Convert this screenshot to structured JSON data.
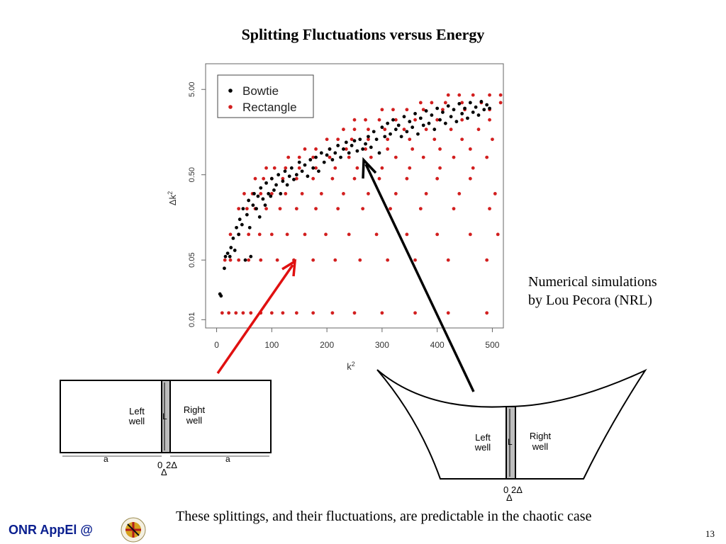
{
  "slide": {
    "title": "Splitting Fluctuations versus Energy",
    "note_lines": [
      "Numerical simulations",
      "by Lou Pecora (NRL)"
    ],
    "caption": "These splittings, and their fluctuations, are predictable in the chaotic case",
    "page_number": "13",
    "footer_label": "ONR AppEl @",
    "colors": {
      "bowtie": "#000000",
      "rectangle": "#d21f1f",
      "arrow_red": "#e01010",
      "arrow_black": "#000000",
      "footer": "#0a1f8f"
    }
  },
  "chart_data": {
    "type": "scatter",
    "xlabel": "k",
    "xlabel_sup": "2",
    "ylabel": "Δk",
    "ylabel_sup": "2",
    "x_ticks": [
      "0",
      "100",
      "200",
      "300",
      "400",
      "500"
    ],
    "y_ticks": [
      "0.01",
      "0.05",
      "0.50",
      "5.00"
    ],
    "xlim": [
      -20,
      520
    ],
    "ylim": [
      0.008,
      10
    ],
    "yscale": "log",
    "legend_position": "top-left",
    "series": [
      {
        "name": "Bowtie",
        "points": [
          [
            6,
            0.02
          ],
          [
            8,
            0.019
          ],
          [
            14,
            0.04
          ],
          [
            16,
            0.055
          ],
          [
            20,
            0.06
          ],
          [
            24,
            0.055
          ],
          [
            26,
            0.07
          ],
          [
            30,
            0.09
          ],
          [
            33,
            0.065
          ],
          [
            36,
            0.12
          ],
          [
            40,
            0.1
          ],
          [
            42,
            0.15
          ],
          [
            46,
            0.13
          ],
          [
            48,
            0.2
          ],
          [
            52,
            0.05
          ],
          [
            55,
            0.17
          ],
          [
            58,
            0.25
          ],
          [
            60,
            0.12
          ],
          [
            62,
            0.055
          ],
          [
            66,
            0.22
          ],
          [
            68,
            0.3
          ],
          [
            72,
            0.2
          ],
          [
            75,
            0.28
          ],
          [
            78,
            0.16
          ],
          [
            80,
            0.35
          ],
          [
            84,
            0.26
          ],
          [
            88,
            0.22
          ],
          [
            90,
            0.4
          ],
          [
            94,
            0.3
          ],
          [
            98,
            0.28
          ],
          [
            100,
            0.45
          ],
          [
            104,
            0.33
          ],
          [
            108,
            0.38
          ],
          [
            112,
            0.5
          ],
          [
            116,
            0.3
          ],
          [
            120,
            0.42
          ],
          [
            124,
            0.55
          ],
          [
            128,
            0.38
          ],
          [
            132,
            0.48
          ],
          [
            136,
            0.6
          ],
          [
            140,
            0.44
          ],
          [
            145,
            0.5
          ],
          [
            150,
            0.7
          ],
          [
            155,
            0.55
          ],
          [
            160,
            0.65
          ],
          [
            165,
            0.48
          ],
          [
            170,
            0.75
          ],
          [
            175,
            0.6
          ],
          [
            180,
            0.8
          ],
          [
            185,
            0.55
          ],
          [
            190,
            0.9
          ],
          [
            195,
            0.7
          ],
          [
            200,
            0.85
          ],
          [
            205,
            1.0
          ],
          [
            210,
            0.75
          ],
          [
            215,
            0.9
          ],
          [
            220,
            1.1
          ],
          [
            225,
            0.8
          ],
          [
            230,
            1.0
          ],
          [
            235,
            1.2
          ],
          [
            240,
            0.9
          ],
          [
            245,
            1.1
          ],
          [
            250,
            1.25
          ],
          [
            255,
            0.95
          ],
          [
            260,
            1.3
          ],
          [
            265,
            1.0
          ],
          [
            270,
            1.15
          ],
          [
            275,
            1.4
          ],
          [
            280,
            1.05
          ],
          [
            285,
            1.6
          ],
          [
            290,
            1.3
          ],
          [
            295,
            0.9
          ],
          [
            300,
            1.8
          ],
          [
            305,
            1.4
          ],
          [
            310,
            2.0
          ],
          [
            315,
            1.5
          ],
          [
            320,
            2.2
          ],
          [
            325,
            1.7
          ],
          [
            330,
            1.9
          ],
          [
            335,
            1.4
          ],
          [
            340,
            2.4
          ],
          [
            345,
            1.6
          ],
          [
            350,
            2.1
          ],
          [
            355,
            1.8
          ],
          [
            360,
            2.6
          ],
          [
            365,
            1.5
          ],
          [
            370,
            2.3
          ],
          [
            375,
            1.9
          ],
          [
            380,
            2.8
          ],
          [
            385,
            2.0
          ],
          [
            390,
            2.5
          ],
          [
            395,
            1.7
          ],
          [
            400,
            3.0
          ],
          [
            405,
            2.2
          ],
          [
            410,
            2.7
          ],
          [
            415,
            2.0
          ],
          [
            420,
            3.2
          ],
          [
            425,
            2.4
          ],
          [
            430,
            2.9
          ],
          [
            435,
            2.1
          ],
          [
            440,
            3.4
          ],
          [
            445,
            2.6
          ],
          [
            450,
            3.0
          ],
          [
            455,
            2.3
          ],
          [
            460,
            3.5
          ],
          [
            465,
            2.7
          ],
          [
            470,
            3.1
          ],
          [
            475,
            2.5
          ],
          [
            480,
            3.6
          ],
          [
            485,
            2.9
          ],
          [
            490,
            3.3
          ],
          [
            495,
            3.0
          ]
        ]
      },
      {
        "name": "Rectangle",
        "points": [
          [
            10,
            0.012
          ],
          [
            22,
            0.012
          ],
          [
            35,
            0.012
          ],
          [
            48,
            0.012
          ],
          [
            62,
            0.012
          ],
          [
            80,
            0.012
          ],
          [
            100,
            0.012
          ],
          [
            120,
            0.012
          ],
          [
            145,
            0.012
          ],
          [
            175,
            0.012
          ],
          [
            210,
            0.012
          ],
          [
            250,
            0.012
          ],
          [
            300,
            0.012
          ],
          [
            360,
            0.012
          ],
          [
            420,
            0.012
          ],
          [
            490,
            0.012
          ],
          [
            15,
            0.05
          ],
          [
            25,
            0.05
          ],
          [
            40,
            0.05
          ],
          [
            58,
            0.05
          ],
          [
            80,
            0.05
          ],
          [
            110,
            0.05
          ],
          [
            140,
            0.05
          ],
          [
            175,
            0.05
          ],
          [
            215,
            0.05
          ],
          [
            260,
            0.05
          ],
          [
            310,
            0.05
          ],
          [
            360,
            0.05
          ],
          [
            420,
            0.05
          ],
          [
            490,
            0.05
          ],
          [
            25,
            0.1
          ],
          [
            40,
            0.1
          ],
          [
            58,
            0.1
          ],
          [
            78,
            0.1
          ],
          [
            100,
            0.1
          ],
          [
            128,
            0.1
          ],
          [
            160,
            0.1
          ],
          [
            198,
            0.1
          ],
          [
            240,
            0.1
          ],
          [
            290,
            0.1
          ],
          [
            345,
            0.1
          ],
          [
            400,
            0.1
          ],
          [
            460,
            0.1
          ],
          [
            510,
            0.1
          ],
          [
            40,
            0.2
          ],
          [
            55,
            0.2
          ],
          [
            70,
            0.2
          ],
          [
            90,
            0.2
          ],
          [
            115,
            0.2
          ],
          [
            145,
            0.2
          ],
          [
            180,
            0.2
          ],
          [
            220,
            0.2
          ],
          [
            265,
            0.2
          ],
          [
            315,
            0.2
          ],
          [
            370,
            0.2
          ],
          [
            430,
            0.2
          ],
          [
            495,
            0.2
          ],
          [
            50,
            0.3
          ],
          [
            65,
            0.3
          ],
          [
            80,
            0.3
          ],
          [
            100,
            0.3
          ],
          [
            125,
            0.3
          ],
          [
            155,
            0.3
          ],
          [
            190,
            0.3
          ],
          [
            230,
            0.3
          ],
          [
            275,
            0.3
          ],
          [
            325,
            0.3
          ],
          [
            380,
            0.3
          ],
          [
            440,
            0.3
          ],
          [
            505,
            0.3
          ],
          [
            70,
            0.45
          ],
          [
            85,
            0.45
          ],
          [
            100,
            0.45
          ],
          [
            120,
            0.45
          ],
          [
            145,
            0.45
          ],
          [
            175,
            0.45
          ],
          [
            210,
            0.45
          ],
          [
            250,
            0.45
          ],
          [
            295,
            0.45
          ],
          [
            345,
            0.45
          ],
          [
            400,
            0.45
          ],
          [
            460,
            0.45
          ],
          [
            90,
            0.6
          ],
          [
            105,
            0.6
          ],
          [
            125,
            0.6
          ],
          [
            150,
            0.6
          ],
          [
            180,
            0.6
          ],
          [
            215,
            0.6
          ],
          [
            255,
            0.6
          ],
          [
            300,
            0.6
          ],
          [
            350,
            0.6
          ],
          [
            405,
            0.6
          ],
          [
            465,
            0.6
          ],
          [
            130,
            0.8
          ],
          [
            150,
            0.8
          ],
          [
            175,
            0.8
          ],
          [
            205,
            0.8
          ],
          [
            240,
            0.8
          ],
          [
            280,
            0.8
          ],
          [
            325,
            0.8
          ],
          [
            375,
            0.8
          ],
          [
            430,
            0.8
          ],
          [
            490,
            0.8
          ],
          [
            160,
            1.0
          ],
          [
            180,
            1.0
          ],
          [
            205,
            1.0
          ],
          [
            235,
            1.0
          ],
          [
            270,
            1.0
          ],
          [
            310,
            1.0
          ],
          [
            355,
            1.0
          ],
          [
            405,
            1.0
          ],
          [
            460,
            1.0
          ],
          [
            200,
            1.3
          ],
          [
            220,
            1.3
          ],
          [
            245,
            1.3
          ],
          [
            275,
            1.3
          ],
          [
            310,
            1.3
          ],
          [
            350,
            1.3
          ],
          [
            395,
            1.3
          ],
          [
            445,
            1.3
          ],
          [
            500,
            1.3
          ],
          [
            230,
            1.7
          ],
          [
            250,
            1.7
          ],
          [
            275,
            1.7
          ],
          [
            305,
            1.7
          ],
          [
            340,
            1.7
          ],
          [
            380,
            1.7
          ],
          [
            425,
            1.7
          ],
          [
            475,
            1.7
          ],
          [
            250,
            2.2
          ],
          [
            270,
            2.2
          ],
          [
            295,
            2.2
          ],
          [
            325,
            2.2
          ],
          [
            360,
            2.2
          ],
          [
            400,
            2.2
          ],
          [
            445,
            2.2
          ],
          [
            495,
            2.2
          ],
          [
            300,
            2.9
          ],
          [
            320,
            2.9
          ],
          [
            345,
            2.9
          ],
          [
            375,
            2.9
          ],
          [
            410,
            2.9
          ],
          [
            450,
            2.9
          ],
          [
            495,
            2.9
          ],
          [
            370,
            3.5
          ],
          [
            390,
            3.5
          ],
          [
            415,
            3.5
          ],
          [
            445,
            3.5
          ],
          [
            480,
            3.5
          ],
          [
            515,
            3.5
          ],
          [
            420,
            4.3
          ],
          [
            440,
            4.3
          ],
          [
            465,
            4.3
          ],
          [
            495,
            4.3
          ],
          [
            515,
            4.3
          ]
        ]
      }
    ]
  },
  "diagrams": {
    "rectangle": {
      "left_label": [
        "Left",
        "well"
      ],
      "right_label": [
        "Right",
        "well"
      ],
      "a_label": "a",
      "L_label": "L",
      "zero_label": "0",
      "two_delta_label": "2Δ",
      "delta_label": "Δ"
    },
    "bowtie": {
      "left_label": [
        "Left",
        "well"
      ],
      "right_label": [
        "Right",
        "well"
      ],
      "L_label": "L",
      "zero_label": "0",
      "two_delta_label": "2Δ",
      "delta_label": "Δ"
    }
  }
}
